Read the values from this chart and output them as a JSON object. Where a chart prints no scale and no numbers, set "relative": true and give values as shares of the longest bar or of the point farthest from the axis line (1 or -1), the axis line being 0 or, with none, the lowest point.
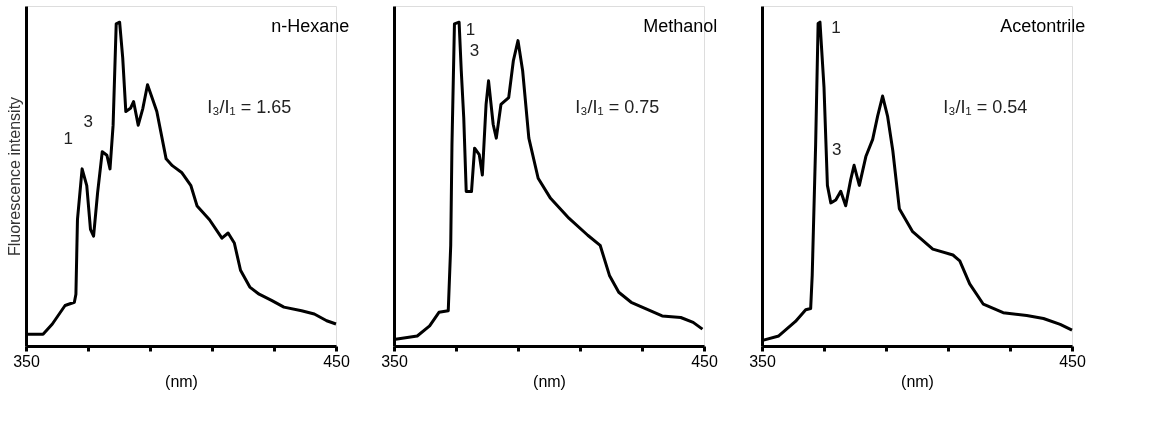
{
  "chart_data": [
    {
      "type": "line",
      "title": "n-Hexane",
      "xlabel": "(nm)",
      "ylabel": "Fluorescence intensity",
      "relative": true,
      "grid": false,
      "color": "#000000",
      "xlim": [
        350,
        450
      ],
      "xticks": [
        350,
        {
          "value": 370,
          "label": null
        },
        {
          "value": 390,
          "label": null
        },
        {
          "value": 410,
          "label": null
        },
        {
          "value": 430,
          "label": null
        },
        450
      ],
      "x": [
        350.5,
        355.5,
        358.5,
        362.6,
        365.6,
        366.1,
        366.6,
        368.1,
        369.6,
        370.8,
        371.8,
        373.1,
        374.6,
        376.1,
        377.1,
        378.1,
        379.1,
        380.2,
        381.2,
        382.2,
        383.7,
        384.7,
        386.2,
        387.7,
        389.2,
        390.7,
        392.2,
        395.2,
        397.2,
        400.2,
        403.2,
        405.2,
        409.2,
        413.2,
        415.2,
        417.2,
        419.2,
        422.2,
        425.2,
        429.2,
        433.2,
        438.9,
        443.0,
        447.0,
        450.0
      ],
      "values": [
        0.036,
        0.036,
        0.068,
        0.125,
        0.135,
        0.16,
        0.39,
        0.547,
        0.495,
        0.36,
        0.339,
        0.474,
        0.6,
        0.589,
        0.547,
        0.682,
        0.995,
        1,
        0.89,
        0.724,
        0.734,
        0.755,
        0.682,
        0.734,
        0.807,
        0.766,
        0.724,
        0.578,
        0.557,
        0.536,
        0.495,
        0.432,
        0.39,
        0.333,
        0.349,
        0.318,
        0.234,
        0.182,
        0.16,
        0.141,
        0.12,
        0.109,
        0.099,
        0.078,
        0.068
      ],
      "annotations": [
        {
          "text": "1",
          "x": 368.1,
          "y": 0.547
        },
        {
          "text": "3",
          "x": 374.6,
          "y": 0.6
        },
        "I₃/I₁ = 1.65"
      ]
    },
    {
      "type": "line",
      "title": "Methanol",
      "xlabel": "(nm)",
      "relative": true,
      "grid": false,
      "color": "#000000",
      "xlim": [
        350,
        450
      ],
      "xticks": [
        350,
        {
          "value": 370,
          "label": null
        },
        {
          "value": 390,
          "label": null
        },
        {
          "value": 410,
          "label": null
        },
        {
          "value": 430,
          "label": null
        },
        450
      ],
      "x": [
        350.5,
        357.5,
        361.5,
        364.5,
        367.5,
        368.3,
        368.7,
        369.5,
        371,
        371.7,
        372.5,
        373.3,
        375,
        376,
        377.5,
        378.5,
        379.7,
        380.5,
        382,
        383,
        384.5,
        387,
        388.5,
        390,
        391.5,
        393.5,
        396.5,
        400.5,
        406.5,
        412.5,
        416.5,
        419.5,
        422.5,
        426.5,
        431.5,
        436.5,
        442.5,
        446.5,
        449.5
      ],
      "values": [
        0.021,
        0.031,
        0.062,
        0.104,
        0.109,
        0.311,
        0.622,
        0.995,
        1,
        0.85,
        0.705,
        0.477,
        0.477,
        0.611,
        0.591,
        0.528,
        0.746,
        0.819,
        0.684,
        0.642,
        0.746,
        0.767,
        0.881,
        0.943,
        0.85,
        0.642,
        0.518,
        0.456,
        0.394,
        0.342,
        0.311,
        0.218,
        0.166,
        0.135,
        0.114,
        0.093,
        0.088,
        0.073,
        0.052
      ],
      "annotations": [
        {
          "text": "1",
          "x": 369.5,
          "y": 0.995
        },
        {
          "text": "3",
          "x": 380.5,
          "y": 0.819
        },
        "I₃/I₁ = 0.75"
      ]
    },
    {
      "type": "line",
      "title": "Acetontrile",
      "xlabel": "(nm)",
      "relative": true,
      "grid": false,
      "color": "#000000",
      "xlim": [
        350,
        450
      ],
      "xticks": [
        350,
        {
          "value": 370,
          "label": null
        },
        {
          "value": 390,
          "label": null
        },
        {
          "value": 410,
          "label": null
        },
        {
          "value": 430,
          "label": null
        },
        450
      ],
      "x": [
        350.5,
        355.4,
        360.8,
        364.1,
        365.7,
        366.2,
        367.3,
        368.1,
        368.7,
        370,
        371.1,
        372.2,
        373.8,
        375.4,
        377,
        378.6,
        379.7,
        381.4,
        383.5,
        385.7,
        387.3,
        388.9,
        390.5,
        392.2,
        394.3,
        398.6,
        405.1,
        411.6,
        413.8,
        417,
        421.4,
        427.8,
        435.4,
        440.8,
        446.2,
        450
      ],
      "values": [
        0.018,
        0.031,
        0.076,
        0.112,
        0.116,
        0.219,
        0.621,
        0.996,
        1,
        0.799,
        0.496,
        0.442,
        0.451,
        0.478,
        0.433,
        0.513,
        0.558,
        0.496,
        0.585,
        0.638,
        0.71,
        0.772,
        0.71,
        0.603,
        0.424,
        0.353,
        0.299,
        0.281,
        0.263,
        0.192,
        0.129,
        0.103,
        0.094,
        0.085,
        0.067,
        0.049
      ],
      "annotations": [
        {
          "text": "1",
          "x": 368.7,
          "y": 1
        },
        {
          "text": "3",
          "x": 378.6,
          "y": 0.513
        },
        "I₃/I₁ = 0.54"
      ]
    }
  ]
}
